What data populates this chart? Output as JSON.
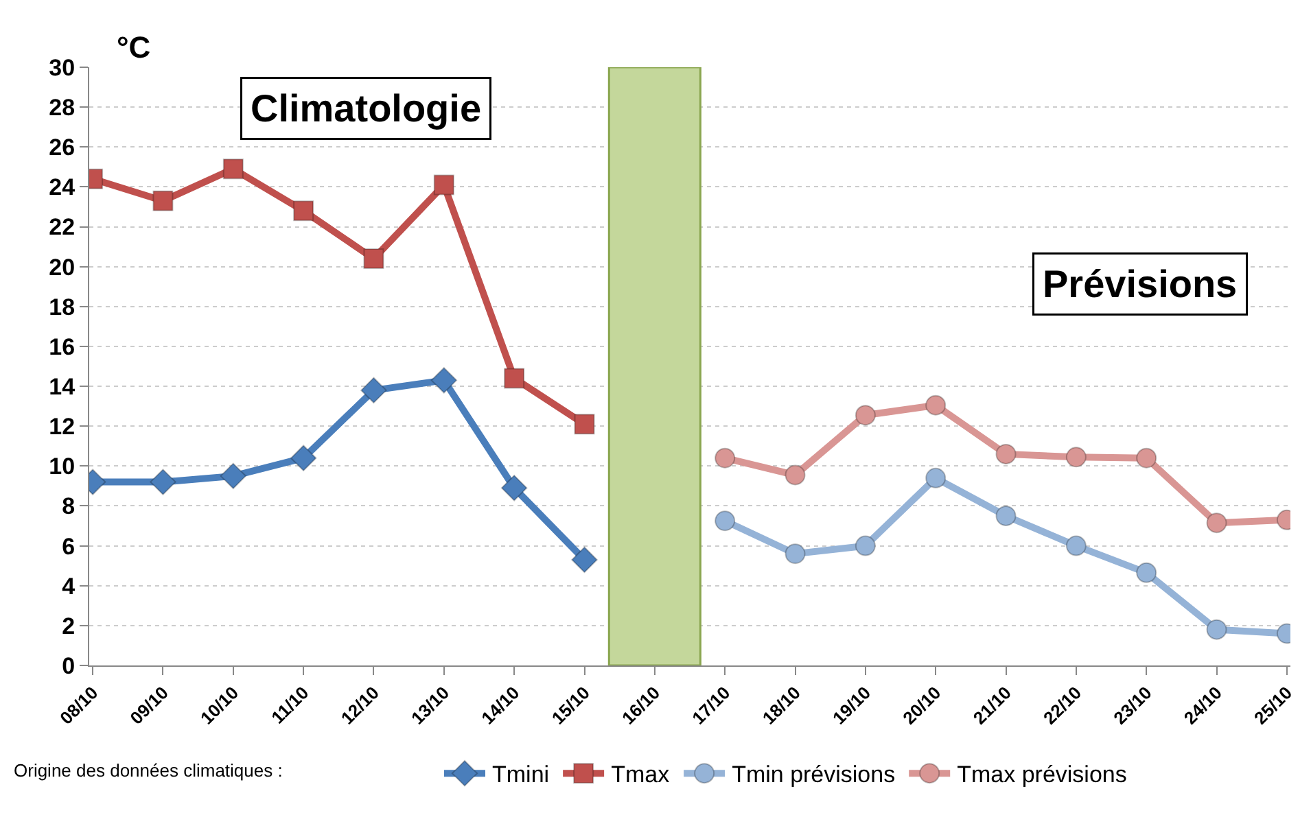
{
  "chart_data": {
    "type": "line",
    "ylabel": "°C",
    "categories": [
      "08/10",
      "09/10",
      "10/10",
      "11/10",
      "12/10",
      "13/10",
      "14/10",
      "15/10",
      "16/10",
      "17/10",
      "18/10",
      "19/10",
      "20/10",
      "21/10",
      "22/10",
      "23/10",
      "24/10",
      "25/10"
    ],
    "series": [
      {
        "type": "bar",
        "color": "#c4d79b",
        "values": [
          null,
          null,
          null,
          null,
          null,
          null,
          null,
          null,
          30,
          null,
          null,
          null,
          null,
          null,
          null,
          null,
          null,
          null
        ]
      },
      {
        "name": "Tmini",
        "color": "#4a7ebb",
        "marker": "diamond",
        "values": [
          9.2,
          9.2,
          9.5,
          10.4,
          13.8,
          14.3,
          8.9,
          5.3,
          null,
          null,
          null,
          null,
          null,
          null,
          null,
          null,
          null,
          null
        ]
      },
      {
        "name": "Tmax",
        "color": "#c0504d",
        "marker": "square",
        "values": [
          24.4,
          23.3,
          24.9,
          22.8,
          20.4,
          24.1,
          14.4,
          12.1,
          null,
          null,
          null,
          null,
          null,
          null,
          null,
          null,
          null,
          null
        ]
      },
      {
        "name": "Tmin prévisions",
        "color": "#95b3d7",
        "marker": "circle",
        "values": [
          null,
          null,
          null,
          null,
          null,
          null,
          null,
          null,
          null,
          7.25,
          5.6,
          6.0,
          9.4,
          7.5,
          6.0,
          4.65,
          1.8,
          1.6
        ]
      },
      {
        "name": "Tmax prévisions",
        "color": "#d99694",
        "marker": "circle",
        "values": [
          null,
          null,
          null,
          null,
          null,
          null,
          null,
          null,
          null,
          10.4,
          9.55,
          12.55,
          13.05,
          10.6,
          10.45,
          10.4,
          7.15,
          7.3
        ]
      }
    ],
    "ylim": [
      0,
      30
    ],
    "yticks": [
      0,
      2,
      4,
      6,
      8,
      10,
      12,
      14,
      16,
      18,
      20,
      22,
      24,
      26,
      28,
      30
    ],
    "grid": "y",
    "legend": "bottom",
    "annotations": [
      "Climatologie",
      "Prévisions",
      "Origine des données climatiques :"
    ]
  }
}
